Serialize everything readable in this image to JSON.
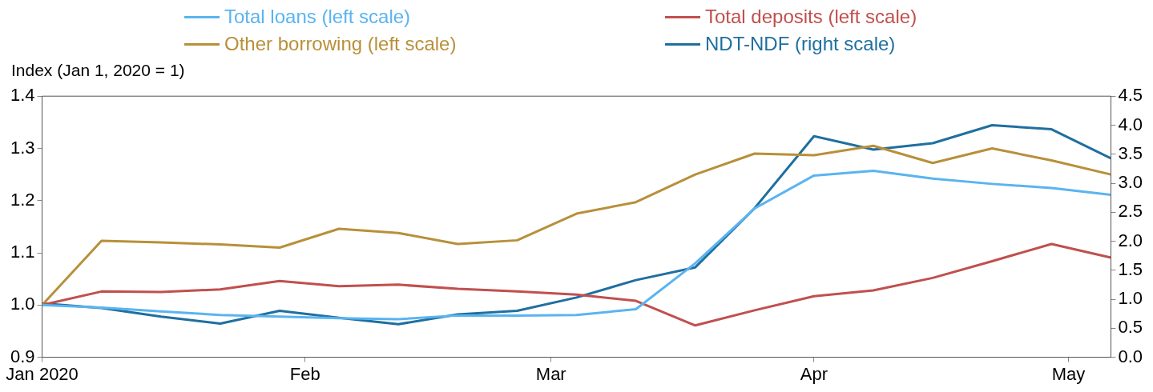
{
  "chart_data": {
    "type": "line",
    "ylabel": "Index (Jan 1, 2020 = 1)",
    "x": [
      "2020-01-01",
      "2020-01-08",
      "2020-01-15",
      "2020-01-22",
      "2020-01-29",
      "2020-02-05",
      "2020-02-12",
      "2020-02-19",
      "2020-02-26",
      "2020-03-04",
      "2020-03-11",
      "2020-03-18",
      "2020-03-25",
      "2020-04-01",
      "2020-04-08",
      "2020-04-15",
      "2020-04-22",
      "2020-04-29",
      "2020-05-06"
    ],
    "series": [
      {
        "name": "Total loans (left scale)",
        "color": "#5ab4f0",
        "values": [
          1.0,
          0.995,
          0.988,
          0.981,
          0.978,
          0.975,
          0.973,
          0.98,
          0.98,
          0.981,
          0.992,
          1.08,
          1.185,
          1.248,
          1.257,
          1.242,
          1.232,
          1.224,
          1.211
        ]
      },
      {
        "name": "Total deposits (left scale)",
        "color": "#c0504d",
        "values": [
          1.0,
          1.026,
          1.025,
          1.03,
          1.046,
          1.036,
          1.039,
          1.031,
          1.026,
          1.02,
          1.008,
          0.961,
          0.99,
          1.017,
          1.028,
          1.052,
          1.084,
          1.117,
          1.091
        ]
      },
      {
        "name": "Other borrowing (left scale)",
        "color": "#b8903a",
        "values": [
          1.0,
          1.123,
          1.12,
          1.116,
          1.11,
          1.146,
          1.138,
          1.117,
          1.124,
          1.175,
          1.197,
          1.25,
          1.29,
          1.287,
          1.305,
          1.272,
          1.3,
          1.277,
          1.25
        ]
      },
      {
        "name": "NDT-NDF (right scale)",
        "color": "#1f6fa0",
        "axis": "y2",
        "values": [
          0.93,
          0.85,
          0.7,
          0.58,
          0.8,
          0.68,
          0.57,
          0.74,
          0.8,
          1.03,
          1.33,
          1.55,
          2.57,
          3.81,
          3.58,
          3.69,
          4.0,
          3.93,
          3.43
        ]
      }
    ],
    "xlim": [
      "2020-01-01",
      "2020-05-06"
    ],
    "xticks": [
      {
        "value": "2020-01-01",
        "label": "Jan 2020"
      },
      {
        "value": "2020-02-01",
        "label": "Feb"
      },
      {
        "value": "2020-03-01",
        "label": "Mar"
      },
      {
        "value": "2020-04-01",
        "label": "Apr"
      },
      {
        "value": "2020-05-01",
        "label": "May"
      }
    ],
    "ylim": [
      0.9,
      1.4
    ],
    "yticks": [
      0.9,
      {
        "value": 1,
        "label": "1.0"
      },
      1.1,
      1.2,
      1.3,
      1.4
    ],
    "y2lim": [
      0,
      4.5
    ],
    "y2ticks": [
      {
        "value": 0,
        "label": "0.0"
      },
      0.5,
      {
        "value": 1,
        "label": "1.0"
      },
      1.5,
      {
        "value": 2,
        "label": "2.0"
      },
      2.5,
      {
        "value": 3,
        "label": "3.0"
      },
      3.5,
      {
        "value": 4,
        "label": "4.0"
      },
      4.5
    ],
    "grid": false,
    "legend": "top",
    "marker": "none",
    "line_style": "solid"
  }
}
